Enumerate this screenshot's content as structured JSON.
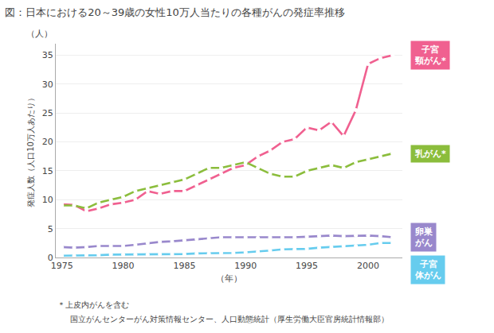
{
  "chart_data": {
    "type": "line",
    "title": "図：日本における20～39歳の女性10万人当たりの各種がんの発症率推移",
    "subtitle": "国立がんセンターがん対策情報センター、人口動態統計（厚生労働大臣官房統計情報部）",
    "xlabel": "（年）",
    "ylabel": "発症人数（人口10万人あたり）",
    "annotations": [
      "（人）",
      "＊上皮内がんを含む"
    ],
    "x": [
      1975,
      1976,
      1977,
      1978,
      1979,
      1980,
      1981,
      1982,
      1983,
      1984,
      1985,
      1986,
      1987,
      1988,
      1989,
      1990,
      1991,
      1992,
      1993,
      1994,
      1995,
      1996,
      1997,
      1998,
      1999,
      2000,
      2001,
      2002
    ],
    "series": [
      {
        "name": "子宮\n頸がん*",
        "color": "#F06090",
        "values": [
          9.2,
          9.1,
          8.0,
          8.5,
          9.2,
          9.5,
          10.0,
          11.5,
          11.0,
          11.5,
          11.5,
          12.5,
          13.5,
          14.5,
          15.5,
          16.0,
          17.5,
          18.5,
          20.0,
          20.5,
          22.5,
          22.0,
          23.5,
          21.0,
          25.5,
          33.5,
          34.5,
          35.0
        ]
      },
      {
        "name": "乳がん*",
        "color": "#8BBD3C",
        "values": [
          9.0,
          9.0,
          8.5,
          9.5,
          10.0,
          10.5,
          11.5,
          12.0,
          12.5,
          13.0,
          13.5,
          14.5,
          15.5,
          15.5,
          16.0,
          16.5,
          15.5,
          14.5,
          14.0,
          14.0,
          15.0,
          15.5,
          16.0,
          15.5,
          16.5,
          17.0,
          17.5,
          18.0
        ]
      },
      {
        "name": "卵巣\nがん",
        "color": "#9988CC",
        "values": [
          1.8,
          1.7,
          1.8,
          2.0,
          2.0,
          2.0,
          2.2,
          2.5,
          2.7,
          2.8,
          3.0,
          3.2,
          3.3,
          3.5,
          3.5,
          3.5,
          3.4,
          3.5,
          3.5,
          3.5,
          3.6,
          3.7,
          3.8,
          3.7,
          3.8,
          3.8,
          3.7,
          3.5
        ]
      },
      {
        "name": "子宮\n体がん",
        "color": "#66CCEE",
        "values": [
          0.3,
          0.3,
          0.4,
          0.4,
          0.5,
          0.5,
          0.5,
          0.5,
          0.6,
          0.6,
          0.6,
          0.7,
          0.7,
          0.8,
          0.8,
          0.9,
          1.0,
          1.2,
          1.4,
          1.4,
          1.5,
          1.7,
          1.8,
          2.0,
          2.0,
          2.2,
          2.5,
          2.5
        ]
      }
    ],
    "xlim": [
      1974.5,
      2002.8
    ],
    "xticks": [
      1975,
      1980,
      1985,
      1990,
      1995,
      2000
    ],
    "ylim": [
      0,
      37
    ],
    "yticks": [
      0,
      5,
      10,
      15,
      20,
      25,
      30,
      35
    ],
    "grid": true,
    "marker": "circle"
  }
}
